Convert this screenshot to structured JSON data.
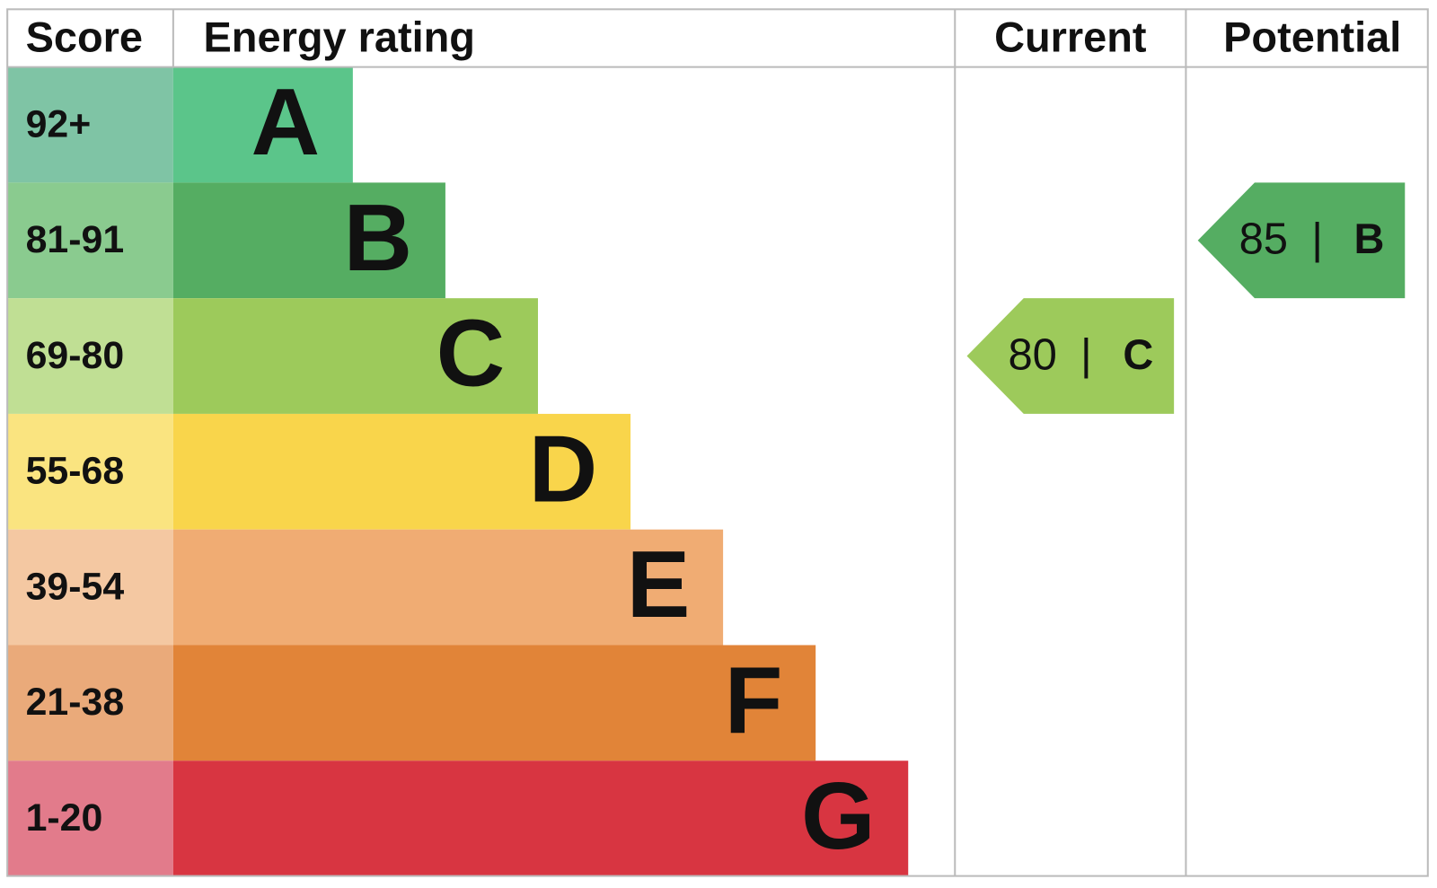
{
  "header": {
    "score": "Score",
    "rating": "Energy rating",
    "current": "Current",
    "potential": "Potential"
  },
  "bands": [
    {
      "score": "92+",
      "rating": "A",
      "color": "#5bc58a",
      "light": "#7fc4a5"
    },
    {
      "score": "81-91",
      "rating": "B",
      "color": "#55ad62",
      "light": "#8acb8f"
    },
    {
      "score": "69-80",
      "rating": "C",
      "color": "#9dca5b",
      "light": "#c0df94"
    },
    {
      "score": "55-68",
      "rating": "D",
      "color": "#f9d54b",
      "light": "#fae480"
    },
    {
      "score": "39-54",
      "rating": "E",
      "color": "#f0ac73",
      "light": "#f4c8a2"
    },
    {
      "score": "21-38",
      "rating": "F",
      "color": "#e18438",
      "light": "#eaaa7a"
    },
    {
      "score": "1-20",
      "rating": "G",
      "color": "#d83541",
      "light": "#e27b8b"
    }
  ],
  "current": {
    "score": 80,
    "separator": "|",
    "rating": "C"
  },
  "potential": {
    "score": 85,
    "separator": "|",
    "rating": "B"
  }
}
